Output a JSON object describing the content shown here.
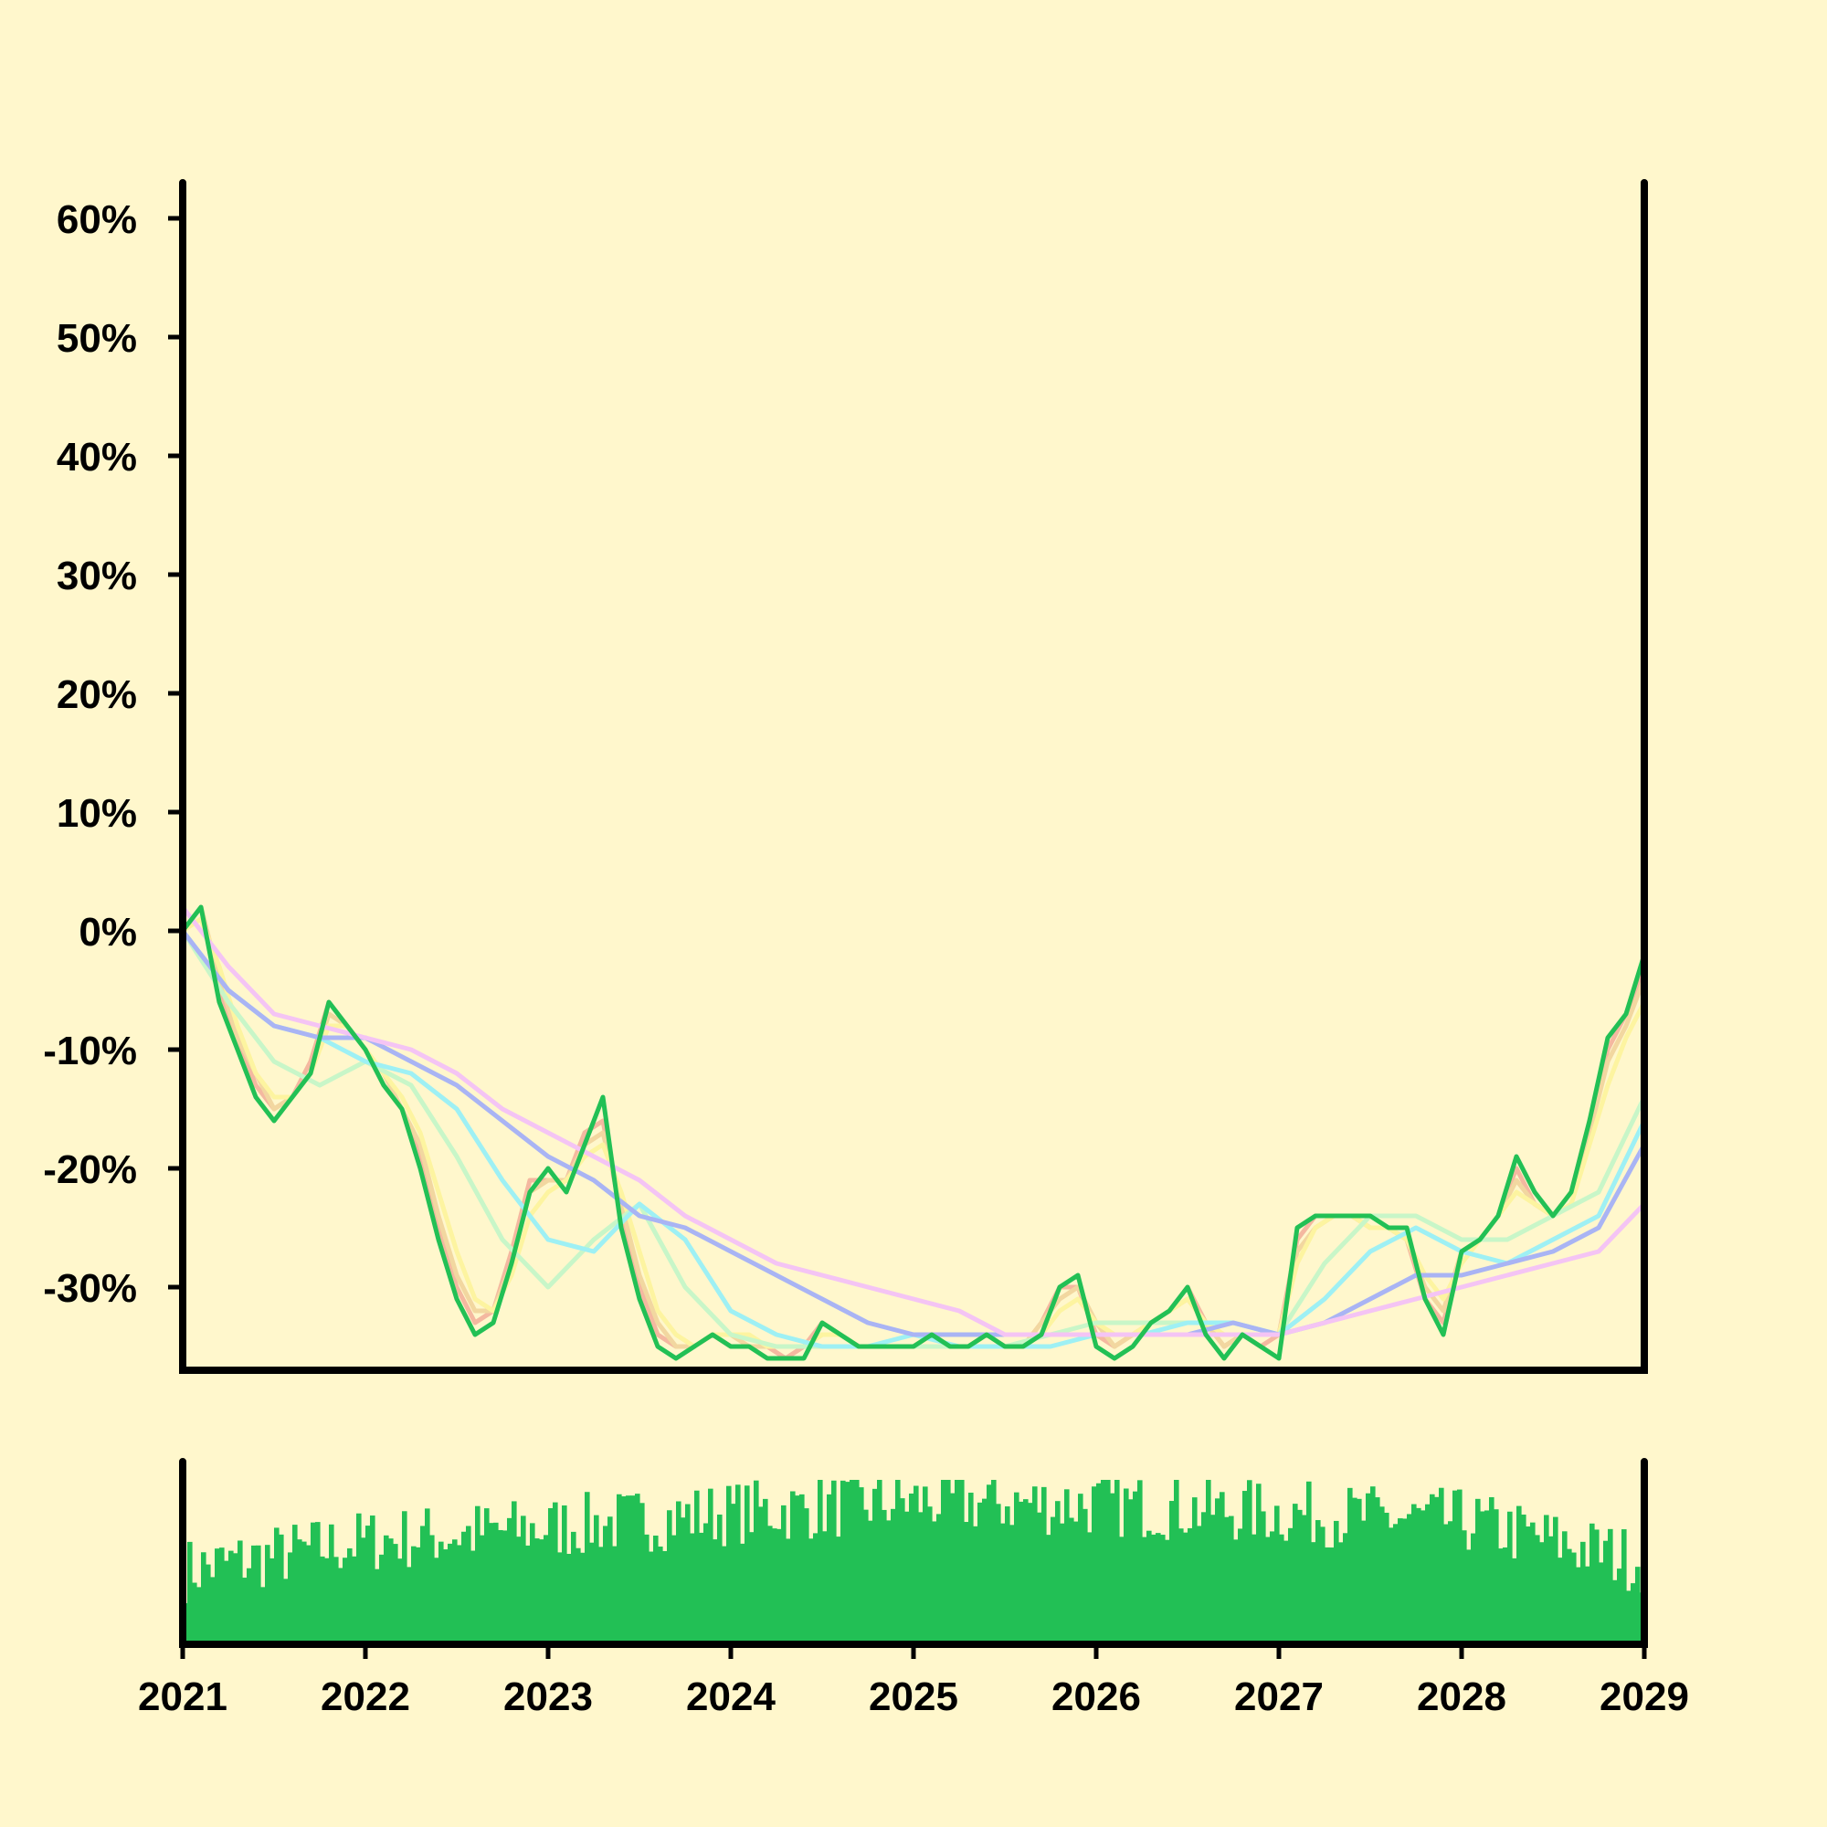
{
  "chart_data": {
    "type": "line",
    "title": "",
    "xlabel": "",
    "ylabel": "",
    "colors": {
      "background": "#fff7cc",
      "axis": "#000000",
      "price": "#22c055",
      "volume": "#22c055",
      "ma": [
        "#f4b8a0",
        "#f2d7a0",
        "#fdf4a0",
        "#c8f6c8",
        "#9ef0f4",
        "#a9b4f4",
        "#f4c4f4"
      ]
    },
    "x_axis": {
      "range": [
        2021,
        2029
      ],
      "ticks": [
        2021,
        2022,
        2023,
        2024,
        2025,
        2026,
        2027,
        2028,
        2029
      ],
      "tick_labels": [
        "2021",
        "2022",
        "2023",
        "2024",
        "2025",
        "2026",
        "2027",
        "2028",
        "2029"
      ]
    },
    "y_axis": {
      "range": [
        -37,
        63
      ],
      "ticks": [
        -30,
        -20,
        -10,
        0,
        10,
        20,
        30,
        40,
        50,
        60
      ],
      "tick_labels": [
        "-30%",
        "-20%",
        "-10%",
        "0%",
        "10%",
        "20%",
        "30%",
        "40%",
        "50%",
        "60%"
      ]
    },
    "series": [
      {
        "role": "price",
        "x": [
          2021.0,
          2021.1,
          2021.2,
          2021.3,
          2021.4,
          2021.5,
          2021.6,
          2021.7,
          2021.8,
          2021.9,
          2022.0,
          2022.1,
          2022.2,
          2022.3,
          2022.4,
          2022.5,
          2022.6,
          2022.7,
          2022.8,
          2022.9,
          2023.0,
          2023.1,
          2023.2,
          2023.3,
          2023.4,
          2023.5,
          2023.6,
          2023.7,
          2023.8,
          2023.9,
          2024.0,
          2024.1,
          2024.2,
          2024.3,
          2024.4,
          2024.5,
          2024.6,
          2024.7,
          2024.8,
          2024.9,
          2025.0,
          2025.1,
          2025.2,
          2025.3,
          2025.4,
          2025.5,
          2025.6,
          2025.7,
          2025.8,
          2025.9,
          2026.0,
          2026.1,
          2026.2,
          2026.3,
          2026.4,
          2026.5,
          2026.6,
          2026.7,
          2026.8,
          2026.9,
          2027.0,
          2027.1,
          2027.2,
          2027.3,
          2027.4,
          2027.5,
          2027.6,
          2027.7,
          2027.8,
          2027.9,
          2028.0,
          2028.1,
          2028.2,
          2028.3,
          2028.4,
          2028.5,
          2028.6,
          2028.7,
          2028.8,
          2028.9,
          2029.0
        ],
        "values": [
          0,
          2,
          -6,
          -10,
          -14,
          -16,
          -14,
          -12,
          -6,
          -8,
          -10,
          -13,
          -15,
          -20,
          -26,
          -31,
          -34,
          -33,
          -28,
          -22,
          -20,
          -22,
          -18,
          -14,
          -25,
          -31,
          -35,
          -36,
          -35,
          -34,
          -35,
          -35,
          -36,
          -36,
          -36,
          -33,
          -34,
          -35,
          -35,
          -35,
          -35,
          -34,
          -35,
          -35,
          -34,
          -35,
          -35,
          -34,
          -30,
          -29,
          -35,
          -36,
          -35,
          -33,
          -32,
          -30,
          -34,
          -36,
          -34,
          -35,
          -36,
          -25,
          -24,
          -24,
          -24,
          -24,
          -25,
          -25,
          -31,
          -34,
          -27,
          -26,
          -24,
          -19,
          -22,
          -24,
          -22,
          -16,
          -9,
          -7,
          -2
        ]
      },
      {
        "role": "ma",
        "color": "#f4b8a0",
        "x": [
          2021.0,
          2021.1,
          2021.2,
          2021.3,
          2021.4,
          2021.5,
          2021.6,
          2021.7,
          2021.8,
          2021.9,
          2022.0,
          2022.1,
          2022.2,
          2022.3,
          2022.4,
          2022.5,
          2022.6,
          2022.7,
          2022.8,
          2022.9,
          2023.0,
          2023.1,
          2023.2,
          2023.3,
          2023.4,
          2023.5,
          2023.6,
          2023.7,
          2023.8,
          2023.9,
          2024.0,
          2024.1,
          2024.2,
          2024.3,
          2024.4,
          2024.5,
          2024.6,
          2024.7,
          2024.8,
          2024.9,
          2025.0,
          2025.1,
          2025.2,
          2025.3,
          2025.4,
          2025.5,
          2025.6,
          2025.7,
          2025.8,
          2025.9,
          2026.0,
          2026.1,
          2026.2,
          2026.3,
          2026.4,
          2026.5,
          2026.6,
          2026.7,
          2026.8,
          2026.9,
          2027.0,
          2027.1,
          2027.2,
          2027.3,
          2027.4,
          2027.5,
          2027.6,
          2027.7,
          2027.8,
          2027.9,
          2028.0,
          2028.1,
          2028.2,
          2028.3,
          2028.4,
          2028.5,
          2028.6,
          2028.7,
          2028.8,
          2028.9,
          2029.0
        ],
        "values": [
          0,
          2,
          -5,
          -9,
          -13,
          -15,
          -14,
          -11,
          -6,
          -8,
          -10,
          -13,
          -15,
          -19,
          -25,
          -30,
          -33,
          -32,
          -27,
          -21,
          -21,
          -21,
          -17,
          -16,
          -24,
          -30,
          -34,
          -35,
          -35,
          -34,
          -35,
          -35,
          -35,
          -36,
          -35,
          -33,
          -34,
          -35,
          -35,
          -35,
          -35,
          -34,
          -35,
          -35,
          -34,
          -35,
          -35,
          -33,
          -30,
          -30,
          -34,
          -35,
          -34,
          -33,
          -32,
          -30,
          -33,
          -35,
          -34,
          -35,
          -34,
          -26,
          -24,
          -24,
          -24,
          -25,
          -25,
          -26,
          -31,
          -33,
          -27,
          -26,
          -24,
          -20,
          -23,
          -24,
          -22,
          -16,
          -10,
          -7,
          -3
        ]
      },
      {
        "role": "ma",
        "color": "#f2d7a0",
        "x": [
          2021.0,
          2021.1,
          2021.2,
          2021.3,
          2021.4,
          2021.5,
          2021.6,
          2021.7,
          2021.8,
          2021.9,
          2022.0,
          2022.1,
          2022.2,
          2022.3,
          2022.4,
          2022.5,
          2022.6,
          2022.7,
          2022.8,
          2022.9,
          2023.0,
          2023.1,
          2023.2,
          2023.3,
          2023.4,
          2023.5,
          2023.6,
          2023.7,
          2023.8,
          2023.9,
          2024.0,
          2024.1,
          2024.2,
          2024.3,
          2024.4,
          2024.5,
          2024.6,
          2024.7,
          2024.8,
          2024.9,
          2025.0,
          2025.1,
          2025.2,
          2025.3,
          2025.4,
          2025.5,
          2025.6,
          2025.7,
          2025.8,
          2025.9,
          2026.0,
          2026.1,
          2026.2,
          2026.3,
          2026.4,
          2026.5,
          2026.6,
          2026.7,
          2026.8,
          2026.9,
          2027.0,
          2027.1,
          2027.2,
          2027.3,
          2027.4,
          2027.5,
          2027.6,
          2027.7,
          2027.8,
          2027.9,
          2028.0,
          2028.1,
          2028.2,
          2028.3,
          2028.4,
          2028.5,
          2028.6,
          2028.7,
          2028.8,
          2028.9,
          2029.0
        ],
        "values": [
          0,
          2,
          -4,
          -9,
          -12,
          -15,
          -14,
          -12,
          -7,
          -8,
          -10,
          -12,
          -15,
          -18,
          -24,
          -29,
          -32,
          -32,
          -28,
          -22,
          -21,
          -21,
          -18,
          -17,
          -23,
          -29,
          -33,
          -35,
          -35,
          -34,
          -34,
          -35,
          -35,
          -35,
          -35,
          -34,
          -34,
          -35,
          -35,
          -35,
          -35,
          -34,
          -35,
          -35,
          -34,
          -35,
          -35,
          -33,
          -31,
          -30,
          -33,
          -35,
          -34,
          -33,
          -32,
          -31,
          -33,
          -35,
          -34,
          -34,
          -34,
          -27,
          -25,
          -24,
          -24,
          -25,
          -25,
          -26,
          -30,
          -32,
          -27,
          -26,
          -24,
          -21,
          -23,
          -24,
          -22,
          -17,
          -11,
          -8,
          -4
        ]
      },
      {
        "role": "ma",
        "color": "#fdf4a0",
        "x": [
          2021.0,
          2021.1,
          2021.2,
          2021.3,
          2021.4,
          2021.5,
          2021.6,
          2021.7,
          2021.8,
          2021.9,
          2022.0,
          2022.1,
          2022.2,
          2022.3,
          2022.4,
          2022.5,
          2022.6,
          2022.7,
          2022.8,
          2022.9,
          2023.0,
          2023.1,
          2023.2,
          2023.3,
          2023.4,
          2023.5,
          2023.6,
          2023.7,
          2023.8,
          2023.9,
          2024.0,
          2024.1,
          2024.2,
          2024.3,
          2024.4,
          2024.5,
          2024.6,
          2024.7,
          2024.8,
          2024.9,
          2025.0,
          2025.1,
          2025.2,
          2025.3,
          2025.4,
          2025.5,
          2025.6,
          2025.7,
          2025.8,
          2025.9,
          2026.0,
          2026.1,
          2026.2,
          2026.3,
          2026.4,
          2026.5,
          2026.6,
          2026.7,
          2026.8,
          2026.9,
          2027.0,
          2027.1,
          2027.2,
          2027.3,
          2027.4,
          2027.5,
          2027.6,
          2027.7,
          2027.8,
          2027.9,
          2028.0,
          2028.1,
          2028.2,
          2028.3,
          2028.4,
          2028.5,
          2028.6,
          2028.7,
          2028.8,
          2028.9,
          2029.0
        ],
        "values": [
          0,
          1,
          -3,
          -8,
          -12,
          -14,
          -14,
          -12,
          -8,
          -8,
          -10,
          -12,
          -14,
          -17,
          -22,
          -27,
          -31,
          -32,
          -29,
          -24,
          -22,
          -21,
          -19,
          -18,
          -22,
          -27,
          -32,
          -34,
          -35,
          -34,
          -34,
          -34,
          -35,
          -35,
          -35,
          -34,
          -34,
          -35,
          -35,
          -35,
          -35,
          -34,
          -35,
          -35,
          -34,
          -35,
          -35,
          -34,
          -32,
          -31,
          -33,
          -34,
          -34,
          -33,
          -32,
          -31,
          -33,
          -34,
          -34,
          -34,
          -34,
          -28,
          -25,
          -24,
          -24,
          -25,
          -25,
          -26,
          -29,
          -31,
          -28,
          -26,
          -24,
          -22,
          -23,
          -24,
          -23,
          -18,
          -13,
          -9,
          -6
        ]
      },
      {
        "role": "ma",
        "color": "#c8f6c8",
        "x": [
          2021.0,
          2021.25,
          2021.5,
          2021.75,
          2022.0,
          2022.25,
          2022.5,
          2022.75,
          2023.0,
          2023.25,
          2023.5,
          2023.75,
          2024.0,
          2024.25,
          2024.5,
          2024.75,
          2025.0,
          2025.25,
          2025.5,
          2025.75,
          2026.0,
          2026.25,
          2026.5,
          2026.75,
          2027.0,
          2027.25,
          2027.5,
          2027.75,
          2028.0,
          2028.25,
          2028.5,
          2028.75,
          2029.0
        ],
        "values": [
          0,
          -6,
          -11,
          -13,
          -11,
          -13,
          -19,
          -26,
          -30,
          -26,
          -23,
          -30,
          -34,
          -35,
          -35,
          -35,
          -35,
          -35,
          -35,
          -34,
          -33,
          -33,
          -33,
          -33,
          -34,
          -28,
          -24,
          -24,
          -26,
          -26,
          -24,
          -22,
          -14
        ]
      },
      {
        "role": "ma",
        "color": "#9ef0f4",
        "x": [
          2021.0,
          2021.25,
          2021.5,
          2021.75,
          2022.0,
          2022.25,
          2022.5,
          2022.75,
          2023.0,
          2023.25,
          2023.5,
          2023.75,
          2024.0,
          2024.25,
          2024.5,
          2024.75,
          2025.0,
          2025.25,
          2025.5,
          2025.75,
          2026.0,
          2026.25,
          2026.5,
          2026.75,
          2027.0,
          2027.25,
          2027.5,
          2027.75,
          2028.0,
          2028.25,
          2028.5,
          2028.75,
          2029.0
        ],
        "values": [
          0,
          -5,
          -8,
          -9,
          -11,
          -12,
          -15,
          -21,
          -26,
          -27,
          -23,
          -26,
          -32,
          -34,
          -35,
          -35,
          -34,
          -35,
          -35,
          -35,
          -34,
          -34,
          -33,
          -33,
          -34,
          -31,
          -27,
          -25,
          -27,
          -28,
          -26,
          -24,
          -16
        ]
      },
      {
        "role": "ma",
        "color": "#a9b4f4",
        "x": [
          2021.0,
          2021.25,
          2021.5,
          2021.75,
          2022.0,
          2022.25,
          2022.5,
          2022.75,
          2023.0,
          2023.25,
          2023.5,
          2023.75,
          2024.0,
          2024.25,
          2024.5,
          2024.75,
          2025.0,
          2025.25,
          2025.5,
          2025.75,
          2026.0,
          2026.25,
          2026.5,
          2026.75,
          2027.0,
          2027.25,
          2027.5,
          2027.75,
          2028.0,
          2028.25,
          2028.5,
          2028.75,
          2029.0
        ],
        "values": [
          0,
          -5,
          -8,
          -9,
          -9,
          -11,
          -13,
          -16,
          -19,
          -21,
          -24,
          -25,
          -27,
          -29,
          -31,
          -33,
          -34,
          -34,
          -34,
          -34,
          -34,
          -34,
          -34,
          -33,
          -34,
          -33,
          -31,
          -29,
          -29,
          -28,
          -27,
          -25,
          -18
        ]
      },
      {
        "role": "ma",
        "color": "#f4c4f4",
        "x": [
          2021.0,
          2021.25,
          2021.5,
          2021.75,
          2022.0,
          2022.25,
          2022.5,
          2022.75,
          2023.0,
          2023.25,
          2023.5,
          2023.75,
          2024.0,
          2024.25,
          2024.5,
          2024.75,
          2025.0,
          2025.25,
          2025.5,
          2025.75,
          2026.0,
          2026.25,
          2026.5,
          2026.75,
          2027.0,
          2027.25,
          2027.5,
          2027.75,
          2028.0,
          2028.25,
          2028.5,
          2028.75,
          2029.0
        ],
        "values": [
          2,
          -3,
          -7,
          -8,
          -9,
          -10,
          -12,
          -15,
          -17,
          -19,
          -21,
          -24,
          -26,
          -28,
          -29,
          -30,
          -31,
          -32,
          -34,
          -34,
          -34,
          -34,
          -34,
          -34,
          -34,
          -33,
          -32,
          -31,
          -30,
          -29,
          -28,
          -27,
          -23
        ]
      }
    ],
    "volume": {
      "x_range": [
        2021,
        2029
      ],
      "bars_per_year": 40,
      "relative_level_by_year": [
        0.5,
        0.68,
        0.76,
        0.85,
        0.92,
        0.9,
        0.85,
        0.8,
        0.55
      ]
    }
  }
}
